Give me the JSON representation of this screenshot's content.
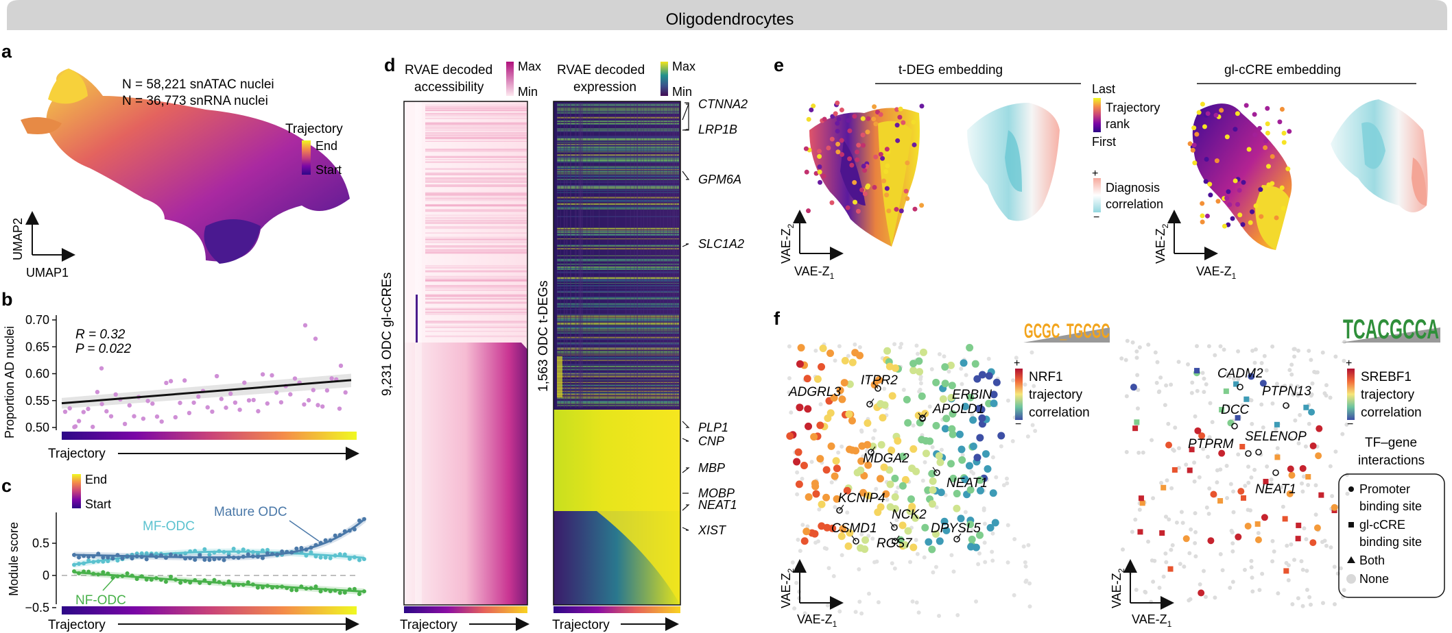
{
  "header": {
    "title": "Oligodendrocytes"
  },
  "panels": {
    "a": {
      "letter": "a",
      "n_atac": "N = 58,221 snATAC nuclei",
      "n_rna": "N = 36,773 snRNA nuclei",
      "legend_title": "Trajectory",
      "legend_end": "End",
      "legend_start": "Start",
      "xaxis": "UMAP1",
      "yaxis": "UMAP2"
    },
    "b": {
      "letter": "b",
      "ylabel": "Proportion AD nuclei",
      "yticks": [
        "0.70",
        "0.65",
        "0.60",
        "0.55",
        "0.50"
      ],
      "r": "R = 0.32",
      "p": "P = 0.022",
      "xlabel": "Trajectory"
    },
    "c": {
      "letter": "c",
      "ylabel": "Module score",
      "yticks": [
        "0.5",
        "0",
        "−0.5"
      ],
      "legend_end": "End",
      "legend_start": "Start",
      "series_labels": [
        "MF-ODC",
        "Mature ODC",
        "NF-ODC"
      ],
      "xlabel": "Trajectory"
    },
    "d": {
      "letter": "d",
      "acc_title_1": "RVAE decoded",
      "acc_title_2": "accessibility",
      "exp_title_1": "RVAE decoded",
      "exp_title_2": "expression",
      "max": "Max",
      "min": "Min",
      "acc_ylabel": "9,231 ODC gl-cCREs",
      "exp_ylabel": "1,563 ODC t-DEGs",
      "genes": [
        "CTNNA2",
        "LRP1B",
        "GPM6A",
        "SLC1A2",
        "PLP1",
        "CNP",
        "MBP",
        "MOBP",
        "NEAT1",
        "XIST"
      ],
      "xlabel": "Trajectory"
    },
    "e": {
      "letter": "e",
      "tdeg_title": "t-DEG embedding",
      "glccre_title": "gl-cCRE embedding",
      "last": "Last",
      "traj_1": "Trajectory",
      "traj_2": "rank",
      "first": "First",
      "plus": "+",
      "minus": "−",
      "diag_1": "Diagnosis",
      "diag_2": "correlation",
      "xaxis": "VAE-Z",
      "yaxis": "VAE-Z",
      "sub1": "1",
      "sub2": "2"
    },
    "f": {
      "letter": "f",
      "left_genes": [
        "ADGRL3",
        "ITPR2",
        "ERBIN",
        "APOLD1",
        "MDGA2",
        "NEAT1",
        "KCNIP4",
        "NCK2",
        "DPYSL5",
        "CSMD1",
        "RGS7"
      ],
      "right_genes": [
        "CADM2",
        "PTPN13",
        "DCC",
        "SELENOP",
        "PTPRM",
        "NEAT1"
      ],
      "nrf1_1": "NRF1",
      "nrf1_2": "trajectory",
      "nrf1_3": "correlation",
      "srebf1_1": "SREBF1",
      "srebf1_2": "trajectory",
      "srebf1_3": "correlation",
      "logo_left": "GCGC_TGCGC",
      "logo_right": "TCACGCCA",
      "plus": "+",
      "minus": "−",
      "tfgene_1": "TF–gene",
      "tfgene_2": "interactions",
      "legend_items": [
        {
          "l1": "Promoter",
          "l2": "binding site"
        },
        {
          "l1": "gl-cCRE",
          "l2": "binding site"
        },
        {
          "l1": "Both",
          "l2": ""
        },
        {
          "l1": "None",
          "l2": ""
        }
      ],
      "xaxis": "VAE-Z",
      "yaxis": "VAE-Z",
      "sub1": "1",
      "sub2": "2"
    }
  },
  "colors": {
    "header_bg": "#d3d3d3",
    "mf_odc": "#5bc2cf",
    "mature_odc": "#4a78a8",
    "nf_odc": "#48b14a",
    "point_b": "#cf8fd6",
    "diag_pos": "#f2a69b",
    "diag_neg": "#93d7df"
  }
}
